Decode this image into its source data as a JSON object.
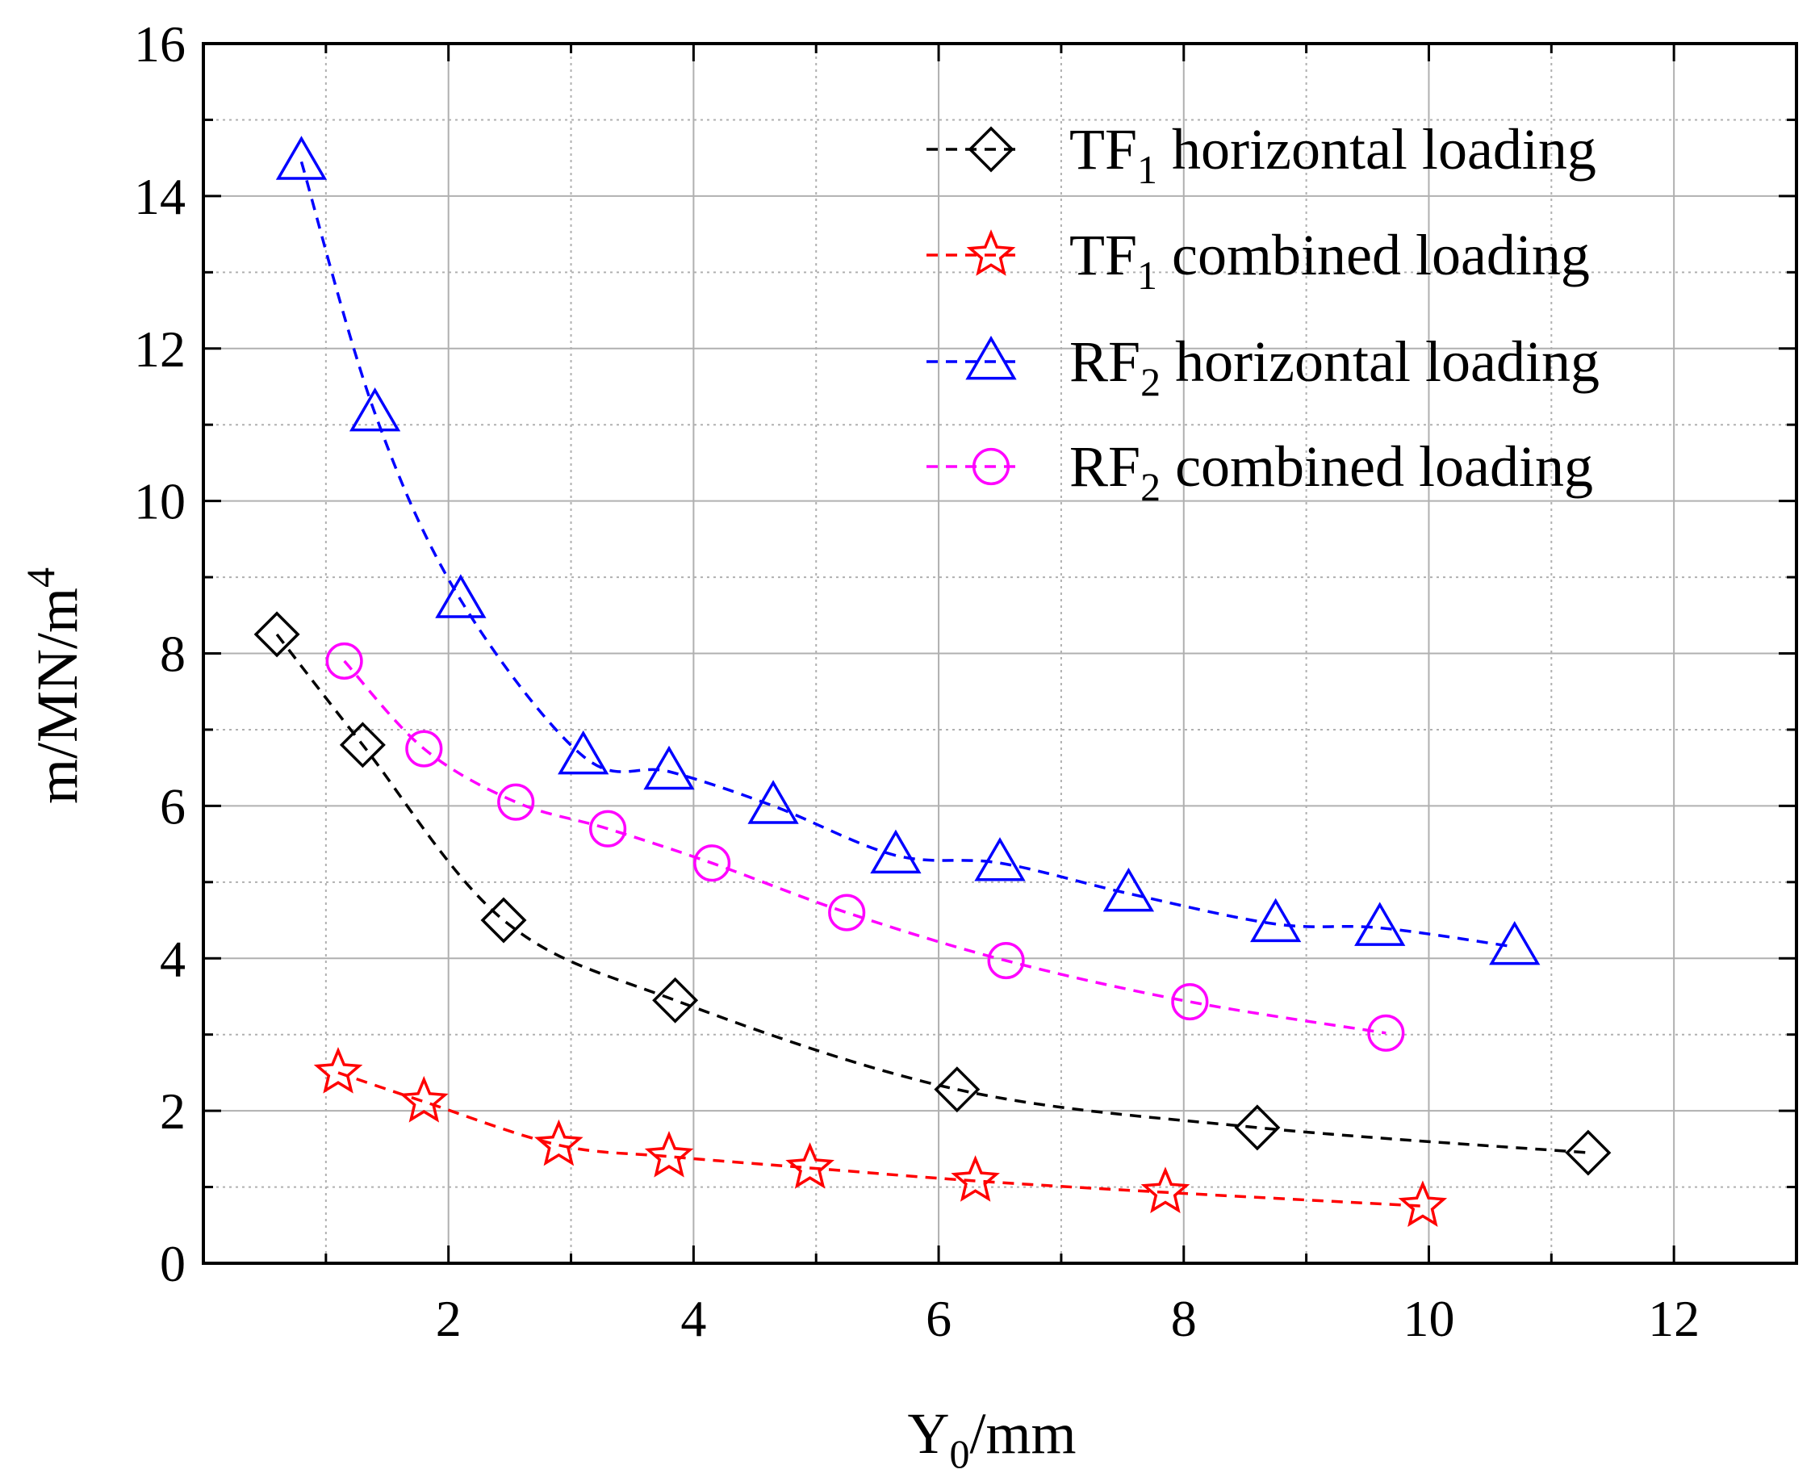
{
  "chart_data": {
    "type": "line",
    "title": "",
    "xlabel": {
      "base": "Y",
      "sub": "0",
      "rest": "/mm"
    },
    "ylabel": {
      "base": "m/MN/m",
      "sup": "4"
    },
    "xlim": [
      0,
      13
    ],
    "ylim": [
      0,
      16
    ],
    "xticks": [
      2,
      4,
      6,
      8,
      10,
      12
    ],
    "xtick_labels": [
      "2",
      "4",
      "6",
      "8",
      "10",
      "12"
    ],
    "yticks": [
      0,
      2,
      4,
      6,
      8,
      10,
      12,
      14,
      16
    ],
    "ytick_labels": [
      "0",
      "2",
      "4",
      "6",
      "8",
      "10",
      "12",
      "14",
      "16"
    ],
    "grid": true,
    "legend_position": "top-right",
    "series": [
      {
        "name": "TF1 horizontal loading",
        "label": {
          "base": "TF",
          "sub": "1",
          "rest": " horizontal loading"
        },
        "color": "#000000",
        "marker": "diamond",
        "x": [
          0.6,
          1.3,
          2.45,
          3.85,
          6.15,
          8.6,
          11.3
        ],
        "y": [
          8.25,
          6.8,
          4.5,
          3.45,
          2.28,
          1.78,
          1.45
        ]
      },
      {
        "name": "TF1 combined loading",
        "label": {
          "base": "TF",
          "sub": "1",
          "rest": " combined loading"
        },
        "color": "#ff0000",
        "marker": "star",
        "x": [
          1.1,
          1.8,
          2.9,
          3.8,
          4.95,
          6.3,
          7.85,
          9.95
        ],
        "y": [
          2.5,
          2.12,
          1.55,
          1.4,
          1.25,
          1.08,
          0.93,
          0.75
        ]
      },
      {
        "name": "RF2 horizontal loading",
        "label": {
          "base": "RF",
          "sub": "2",
          "rest": " horizontal loading"
        },
        "color": "#0000ff",
        "marker": "triangle",
        "x": [
          0.8,
          1.4,
          2.1,
          3.1,
          3.8,
          4.65,
          5.65,
          6.5,
          7.55,
          8.75,
          9.6,
          10.7
        ],
        "y": [
          14.45,
          11.15,
          8.7,
          6.65,
          6.45,
          6.0,
          5.35,
          5.25,
          4.85,
          4.45,
          4.4,
          4.15
        ]
      },
      {
        "name": "RF2 combined loading",
        "label": {
          "base": "RF",
          "sub": "2",
          "rest": " combined loading"
        },
        "color": "#ff00ff",
        "marker": "circle",
        "x": [
          1.15,
          1.8,
          2.55,
          3.3,
          4.15,
          5.25,
          6.55,
          8.05,
          9.65
        ],
        "y": [
          7.9,
          6.75,
          6.05,
          5.7,
          5.25,
          4.6,
          3.97,
          3.43,
          3.02
        ]
      }
    ]
  }
}
